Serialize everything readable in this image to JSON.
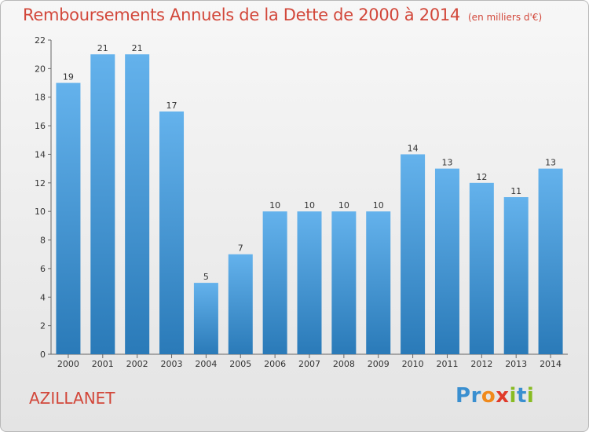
{
  "chart_data": {
    "type": "bar",
    "title": "Remboursements Annuels de la Dette de 2000 à 2014",
    "unit": "(en milliers d'€)",
    "categories": [
      "2000",
      "2001",
      "2002",
      "2003",
      "2004",
      "2005",
      "2006",
      "2007",
      "2008",
      "2009",
      "2010",
      "2011",
      "2012",
      "2013",
      "2014"
    ],
    "values": [
      19,
      21,
      21,
      17,
      5,
      7,
      10,
      10,
      10,
      10,
      14,
      13,
      12,
      11,
      13
    ],
    "ylim": [
      0,
      22
    ],
    "yticks": [
      0,
      2,
      4,
      6,
      8,
      10,
      12,
      14,
      16,
      18,
      20,
      22
    ],
    "xlabel": "",
    "ylabel": "",
    "grid": false,
    "bar_color_top": "#64b2ec",
    "bar_color_bottom": "#2a7ab8"
  },
  "commune": "AZILLANET",
  "logo": {
    "letters": [
      "P",
      "r",
      "o",
      "x",
      "i",
      "t",
      "i"
    ],
    "colors": [
      "#3a8fd0",
      "#3a8fd0",
      "#f08a1c",
      "#e03a2a",
      "#88bb22",
      "#3a8fd0",
      "#88bb22"
    ]
  }
}
